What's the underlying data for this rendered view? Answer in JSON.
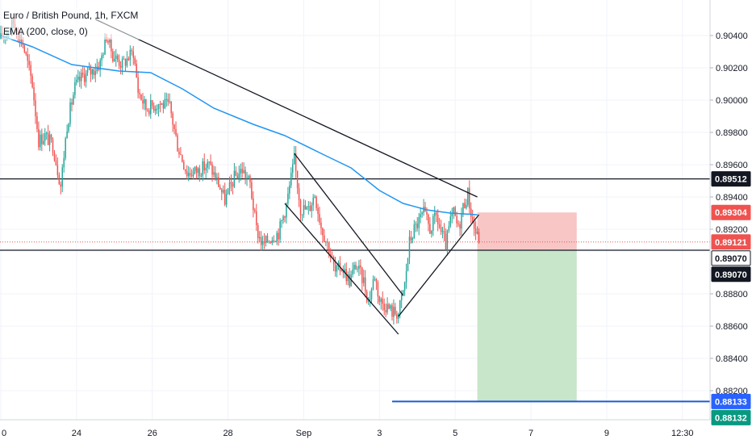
{
  "chart_data": {
    "type": "candlestick",
    "title": "Euro / British Pound, 1h, FXCM",
    "indicator": "EMA (200, close, 0)",
    "colors": {
      "up": "#26a69a",
      "down": "#ef5350",
      "ema": "#2196f3",
      "trendline": "#131722",
      "stop_zone": "#f7c6c5",
      "target_zone": "#c8e6c9",
      "target_line": "#1e5bd6",
      "last_price_line": "#ef5350",
      "grid": "#f0f3fa"
    },
    "y_axis": {
      "range": [
        0.8802,
        0.9062
      ],
      "ticks": [
        "0.90400",
        "0.90200",
        "0.90000",
        "0.89800",
        "0.89600",
        "0.89400",
        "0.89200",
        "0.88800",
        "0.88600",
        "0.88400",
        "0.88200"
      ],
      "tick_values": [
        0.904,
        0.902,
        0.9,
        0.898,
        0.896,
        0.894,
        0.892,
        0.888,
        0.886,
        0.884,
        0.882
      ]
    },
    "x_axis": {
      "labels": [
        "0",
        "24",
        "26",
        "28",
        "Sep",
        "3",
        "5",
        "7",
        "9",
        "12:30"
      ],
      "label_index": [
        0,
        48,
        96,
        144,
        192,
        240,
        288,
        336,
        384,
        432
      ],
      "total_bars": 450
    },
    "price_labels": [
      {
        "label": "0.89512",
        "value": 0.89512,
        "style": "dark"
      },
      {
        "label": "0.89304",
        "value": 0.89304,
        "style": "red"
      },
      {
        "label": "0.89121",
        "value": 0.89121,
        "style": "red"
      },
      {
        "label": "0.89070",
        "value": 0.8907,
        "style": "outline"
      },
      {
        "label": "0.89070",
        "value": 0.8907,
        "style": "dark"
      },
      {
        "label": "0.88133",
        "value": 0.88133,
        "style": "blue"
      },
      {
        "label": "0.88132",
        "value": 0.88132,
        "style": "green"
      }
    ],
    "horizontal_levels": [
      0.89512,
      0.8907
    ],
    "last_price": 0.89121,
    "target_level": 0.88133,
    "position": {
      "entry": 0.8907,
      "stop": 0.89304,
      "target": 0.88133,
      "start_index": 302,
      "end_index": 365
    },
    "trendlines": [
      {
        "from": [
          60,
          0.905
        ],
        "to": [
          302,
          0.894
        ]
      },
      {
        "from": [
          186,
          0.8967
        ],
        "to": [
          255,
          0.8879
        ]
      },
      {
        "from": [
          180,
          0.8936
        ],
        "to": [
          252,
          0.8855
        ]
      },
      {
        "from": [
          252,
          0.8866
        ],
        "to": [
          303,
          0.8929
        ]
      }
    ],
    "price_path": [
      [
        0,
        0.9038
      ],
      [
        8,
        0.9048
      ],
      [
        14,
        0.9035
      ],
      [
        20,
        0.901
      ],
      [
        24,
        0.8975
      ],
      [
        28,
        0.8978
      ],
      [
        33,
        0.8972
      ],
      [
        38,
        0.8947
      ],
      [
        42,
        0.8985
      ],
      [
        47,
        0.9008
      ],
      [
        52,
        0.9015
      ],
      [
        58,
        0.9018
      ],
      [
        63,
        0.9023
      ],
      [
        67,
        0.904
      ],
      [
        71,
        0.9028
      ],
      [
        77,
        0.9022
      ],
      [
        84,
        0.903
      ],
      [
        87,
        0.9006
      ],
      [
        92,
        0.8995
      ],
      [
        100,
        0.8998
      ],
      [
        107,
        0.8996
      ],
      [
        112,
        0.8972
      ],
      [
        118,
        0.8955
      ],
      [
        124,
        0.8956
      ],
      [
        132,
        0.896
      ],
      [
        138,
        0.8948
      ],
      [
        142,
        0.8938
      ],
      [
        148,
        0.8952
      ],
      [
        153,
        0.8957
      ],
      [
        158,
        0.8948
      ],
      [
        162,
        0.892
      ],
      [
        166,
        0.891
      ],
      [
        171,
        0.8915
      ],
      [
        176,
        0.8918
      ],
      [
        181,
        0.8935
      ],
      [
        186,
        0.8963
      ],
      [
        190,
        0.8933
      ],
      [
        195,
        0.8932
      ],
      [
        199,
        0.8942
      ],
      [
        203,
        0.8922
      ],
      [
        208,
        0.8908
      ],
      [
        212,
        0.8893
      ],
      [
        216,
        0.8897
      ],
      [
        221,
        0.8888
      ],
      [
        225,
        0.8898
      ],
      [
        230,
        0.8888
      ],
      [
        233,
        0.8875
      ],
      [
        237,
        0.8892
      ],
      [
        240,
        0.8876
      ],
      [
        244,
        0.8873
      ],
      [
        248,
        0.8869
      ],
      [
        252,
        0.8868
      ],
      [
        256,
        0.8886
      ],
      [
        259,
        0.8912
      ],
      [
        262,
        0.892
      ],
      [
        265,
        0.8925
      ],
      [
        268,
        0.893
      ],
      [
        272,
        0.892
      ],
      [
        276,
        0.8928
      ],
      [
        279,
        0.8918
      ],
      [
        282,
        0.891
      ],
      [
        285,
        0.8925
      ],
      [
        287,
        0.893
      ],
      [
        290,
        0.892
      ],
      [
        293,
        0.8934
      ],
      [
        296,
        0.8942
      ],
      [
        299,
        0.8924
      ],
      [
        303,
        0.89121
      ]
    ],
    "ema_path": [
      [
        0,
        0.904
      ],
      [
        20,
        0.9033
      ],
      [
        45,
        0.9022
      ],
      [
        75,
        0.9018
      ],
      [
        95,
        0.9017
      ],
      [
        115,
        0.9007
      ],
      [
        135,
        0.8995
      ],
      [
        160,
        0.8985
      ],
      [
        180,
        0.8978
      ],
      [
        205,
        0.8966
      ],
      [
        222,
        0.8958
      ],
      [
        240,
        0.8944
      ],
      [
        255,
        0.8936
      ],
      [
        270,
        0.8932
      ],
      [
        285,
        0.893
      ],
      [
        302,
        0.8929
      ]
    ]
  }
}
